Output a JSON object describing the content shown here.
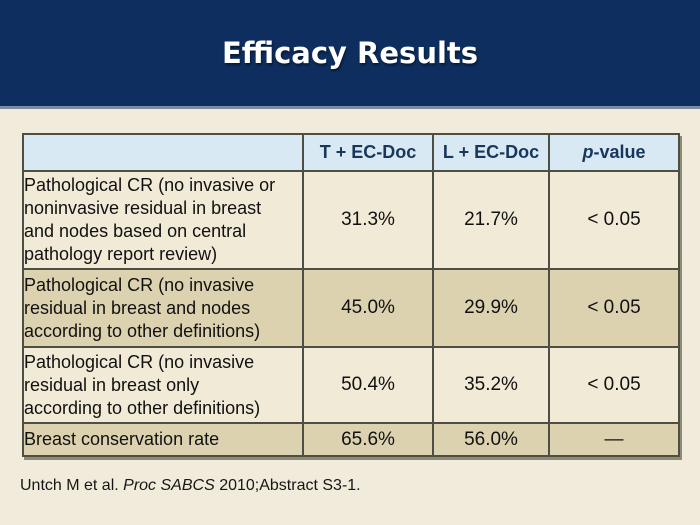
{
  "slide": {
    "title": "Efficacy Results",
    "citation": {
      "prefix": "Untch M et al. ",
      "source": "Proc SABCS",
      "suffix": " 2010;Abstract S3-1."
    }
  },
  "colors": {
    "band_navy": "#0d2e5e",
    "band_underline": "#7d8ba3",
    "background_cream": "#f0ebda",
    "header_row_blue": "#d8e9f3",
    "row_light": "#f0ead6",
    "row_tan": "#ddd2af",
    "table_border": "#4d4f45",
    "header_text_navy": "#17375d",
    "title_text": "#ffffff"
  },
  "table": {
    "columns": [
      "",
      "T + EC-Doc",
      "L + EC-Doc",
      "p-value"
    ],
    "p_header": {
      "italic": "p",
      "rest": "-value"
    },
    "rows": [
      {
        "label": "Pathological CR (no invasive or\nnoninvasive residual in breast\nand nodes based on central\npathology report review)",
        "t_ec_doc": "31.3%",
        "l_ec_doc": "21.7%",
        "p_value": "< 0.05"
      },
      {
        "label": "Pathological CR (no invasive\nresidual in breast and nodes\naccording to other definitions)",
        "t_ec_doc": "45.0%",
        "l_ec_doc": "29.9%",
        "p_value": "< 0.05"
      },
      {
        "label": "Pathological CR (no invasive\nresidual in breast only\naccording to other definitions)",
        "t_ec_doc": "50.4%",
        "l_ec_doc": "35.2%",
        "p_value": "< 0.05"
      },
      {
        "label": "Breast conservation rate",
        "t_ec_doc": "65.6%",
        "l_ec_doc": "56.0%",
        "p_value": "—"
      }
    ]
  }
}
